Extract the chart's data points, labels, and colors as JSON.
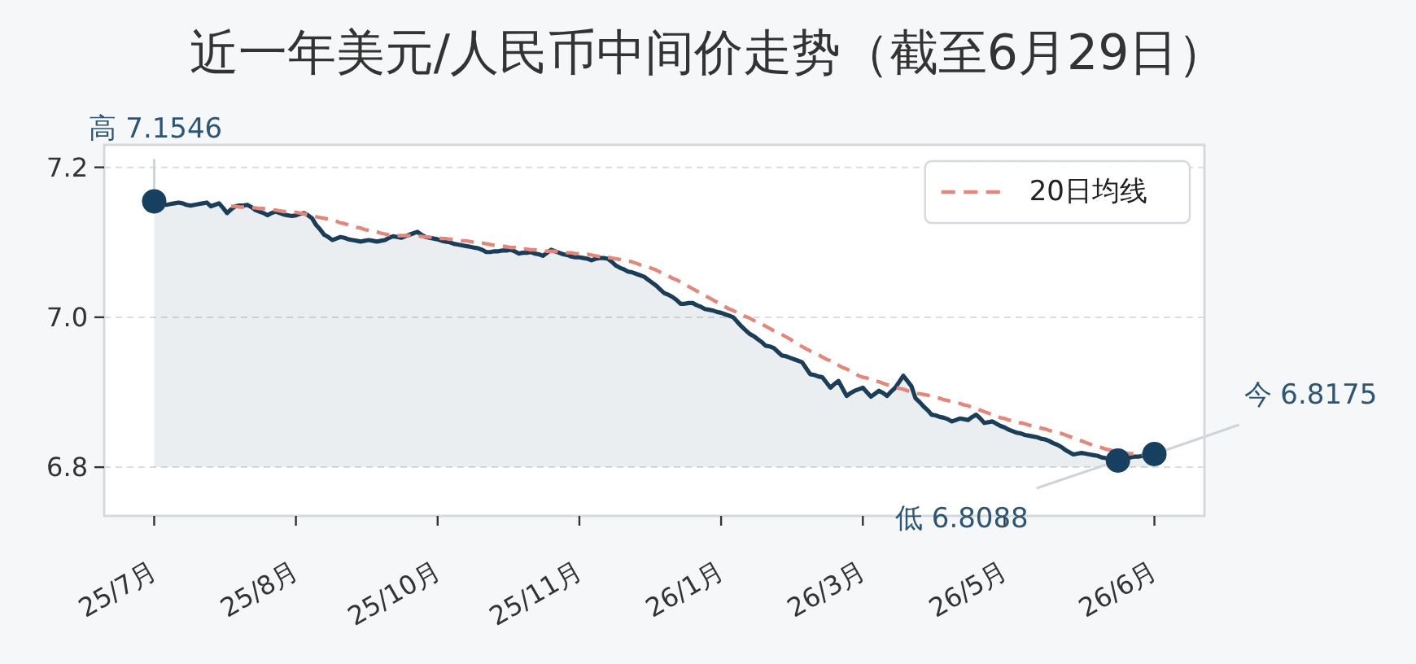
{
  "chart_data": {
    "type": "area",
    "title": "近一年美元/人民币中间价走势（截至6月29日）",
    "categories": [
      "25/7月",
      null,
      null,
      null,
      null,
      null,
      null,
      null,
      null,
      null,
      null,
      null,
      null,
      null,
      null,
      null,
      null,
      null,
      null,
      null,
      null,
      null,
      null,
      null,
      null,
      null,
      null,
      null,
      null,
      null,
      null,
      null,
      null,
      null,
      null,
      "25/8月",
      null,
      null,
      null,
      null,
      null,
      null,
      null,
      null,
      null,
      null,
      null,
      null,
      null,
      null,
      null,
      null,
      null,
      null,
      null,
      null,
      null,
      null,
      null,
      null,
      null,
      null,
      null,
      null,
      null,
      null,
      null,
      null,
      null,
      null,
      "25/10月",
      null,
      null,
      null,
      null,
      null,
      null,
      null,
      null,
      null,
      null,
      null,
      null,
      null,
      null,
      null,
      null,
      null,
      null,
      null,
      null,
      null,
      null,
      null,
      null,
      null,
      null,
      null,
      null,
      null,
      null,
      null,
      null,
      null,
      null,
      "25/11月",
      null,
      null,
      null,
      null,
      null,
      null,
      null,
      null,
      null,
      null,
      null,
      null,
      null,
      null,
      null,
      null,
      null,
      null,
      null,
      null,
      null,
      null,
      null,
      null,
      null,
      null,
      null,
      null,
      null,
      null,
      null,
      null,
      null,
      null,
      "26/1月",
      null,
      null,
      null,
      null,
      null,
      null,
      null,
      null,
      null,
      null,
      null,
      null,
      null,
      null,
      null,
      null,
      null,
      null,
      null,
      null,
      null,
      null,
      null,
      null,
      null,
      null,
      null,
      null,
      null,
      null,
      null,
      null,
      null,
      null,
      "26/3月",
      null,
      null,
      null,
      null,
      null,
      null,
      null,
      null,
      null,
      null,
      null,
      null,
      null,
      null,
      null,
      null,
      null,
      null,
      null,
      null,
      null,
      null,
      null,
      null,
      null,
      null,
      null,
      null,
      null,
      null,
      null,
      null,
      null,
      null,
      "26/5月",
      null,
      null,
      null,
      null,
      null,
      null,
      null,
      null,
      null,
      null,
      null,
      null,
      null,
      null,
      null,
      null,
      null,
      null,
      null,
      null,
      null,
      null,
      null,
      null,
      null,
      null,
      null,
      null,
      null,
      null,
      null,
      null,
      null,
      null,
      null,
      null,
      "26/6月"
    ],
    "series": [
      {
        "color": "#1b3d57",
        "values": [
          7.1546,
          7.153,
          7.151,
          7.15,
          7.151,
          7.152,
          7.153,
          7.152,
          7.15,
          7.149,
          7.15,
          7.151,
          7.152,
          7.153,
          7.148,
          7.15,
          7.152,
          7.146,
          7.139,
          7.144,
          7.148,
          7.149,
          7.149,
          7.15,
          7.147,
          7.143,
          7.141,
          7.139,
          7.136,
          7.139,
          7.141,
          7.139,
          7.137,
          7.136,
          7.135,
          7.136,
          7.138,
          7.139,
          7.136,
          7.132,
          7.123,
          7.117,
          7.11,
          7.107,
          7.103,
          7.105,
          7.107,
          7.106,
          7.104,
          7.103,
          7.102,
          7.101,
          7.102,
          7.103,
          7.102,
          7.101,
          7.102,
          7.103,
          7.106,
          7.108,
          7.107,
          7.106,
          7.108,
          7.11,
          7.112,
          7.114,
          7.11,
          7.107,
          7.106,
          7.105,
          7.104,
          7.102,
          7.101,
          7.1,
          7.098,
          7.097,
          7.096,
          7.095,
          7.094,
          7.093,
          7.092,
          7.09,
          7.087,
          7.087,
          7.088,
          7.088,
          7.089,
          7.089,
          7.09,
          7.088,
          7.085,
          7.086,
          7.086,
          7.087,
          7.085,
          7.084,
          7.082,
          7.086,
          7.09,
          7.088,
          7.086,
          7.084,
          7.083,
          7.081,
          7.08,
          7.08,
          7.079,
          7.078,
          7.076,
          7.078,
          7.079,
          7.079,
          7.078,
          7.074,
          7.069,
          7.066,
          7.064,
          7.061,
          7.06,
          7.058,
          7.056,
          7.054,
          7.05,
          7.046,
          7.042,
          7.037,
          7.032,
          7.03,
          7.027,
          7.023,
          7.018,
          7.018,
          7.019,
          7.019,
          7.016,
          7.014,
          7.011,
          7.01,
          7.009,
          7.007,
          7.006,
          7.004,
          7.002,
          7.0,
          6.994,
          6.988,
          6.983,
          6.978,
          6.975,
          6.971,
          6.967,
          6.962,
          6.961,
          6.959,
          6.954,
          6.949,
          6.948,
          6.946,
          6.944,
          6.942,
          6.94,
          6.932,
          6.924,
          6.923,
          6.921,
          6.92,
          6.913,
          6.906,
          6.911,
          6.915,
          6.905,
          6.895,
          6.899,
          6.902,
          6.904,
          6.906,
          6.9,
          6.894,
          6.898,
          6.902,
          6.899,
          6.895,
          6.901,
          6.906,
          6.914,
          6.922,
          6.915,
          6.908,
          6.892,
          6.887,
          6.881,
          6.876,
          6.87,
          6.869,
          6.867,
          6.866,
          6.864,
          6.861,
          6.863,
          6.865,
          6.864,
          6.863,
          6.867,
          6.87,
          6.865,
          6.859,
          6.86,
          6.861,
          6.858,
          6.855,
          6.853,
          6.85,
          6.848,
          6.846,
          6.845,
          6.843,
          6.842,
          6.841,
          6.84,
          6.838,
          6.837,
          6.835,
          6.832,
          6.83,
          6.827,
          6.823,
          6.82,
          6.817,
          6.818,
          6.819,
          6.818,
          6.817,
          6.816,
          6.815,
          6.813,
          6.812,
          6.811,
          6.81,
          6.8088,
          6.81,
          6.812,
          6.813,
          6.814,
          6.814,
          6.815,
          6.816,
          6.817,
          6.8175
        ]
      },
      {
        "name": "20日均线",
        "type": "line",
        "color": "#e3867c",
        "line_style": "dashed",
        "values": [
          null,
          null,
          null,
          null,
          null,
          null,
          null,
          null,
          null,
          null,
          null,
          null,
          null,
          null,
          null,
          null,
          null,
          null,
          null,
          7.148,
          7.148,
          7.147,
          7.147,
          7.147,
          7.146,
          7.146,
          7.145,
          7.145,
          7.144,
          7.143,
          7.143,
          7.142,
          7.141,
          7.141,
          7.14,
          7.14,
          7.139,
          7.138,
          7.137,
          7.136,
          7.134,
          7.133,
          7.132,
          7.131,
          7.129,
          7.128,
          7.126,
          7.125,
          7.123,
          7.122,
          7.12,
          7.119,
          7.117,
          7.116,
          7.115,
          7.114,
          7.112,
          7.111,
          7.11,
          7.11,
          7.109,
          7.109,
          7.109,
          7.109,
          7.108,
          7.108,
          7.108,
          7.107,
          7.107,
          7.106,
          7.106,
          7.105,
          7.105,
          7.104,
          7.104,
          7.103,
          7.102,
          7.102,
          7.101,
          7.1,
          7.099,
          7.099,
          7.098,
          7.097,
          7.096,
          7.095,
          7.095,
          7.094,
          7.093,
          7.093,
          7.092,
          7.091,
          7.091,
          7.09,
          7.09,
          7.089,
          7.089,
          7.088,
          7.088,
          7.088,
          7.087,
          7.087,
          7.086,
          7.086,
          7.085,
          7.085,
          7.084,
          7.084,
          7.083,
          7.082,
          7.081,
          7.081,
          7.08,
          7.079,
          7.078,
          7.077,
          7.076,
          7.075,
          7.074,
          7.072,
          7.07,
          7.069,
          7.067,
          7.065,
          7.063,
          7.06,
          7.058,
          7.055,
          7.052,
          7.05,
          7.047,
          7.044,
          7.041,
          7.038,
          7.035,
          7.032,
          7.029,
          7.026,
          7.023,
          7.02,
          7.017,
          7.014,
          7.011,
          7.009,
          7.006,
          7.004,
          7.001,
          6.999,
          6.996,
          6.993,
          6.991,
          6.988,
          6.985,
          6.982,
          6.98,
          6.977,
          6.974,
          6.971,
          6.967,
          6.964,
          6.961,
          6.958,
          6.955,
          6.953,
          6.95,
          6.947,
          6.944,
          6.942,
          6.939,
          6.936,
          6.933,
          6.931,
          6.928,
          6.925,
          6.922,
          6.92,
          6.919,
          6.917,
          6.915,
          6.914,
          6.912,
          6.91,
          6.909,
          6.907,
          6.905,
          6.904,
          6.902,
          6.901,
          6.899,
          6.898,
          6.897,
          6.896,
          6.894,
          6.893,
          6.892,
          6.89,
          6.889,
          6.887,
          6.886,
          6.885,
          6.883,
          6.882,
          6.88,
          6.878,
          6.876,
          6.874,
          6.872,
          6.87,
          6.868,
          6.866,
          6.865,
          6.863,
          6.862,
          6.86,
          6.859,
          6.858,
          6.856,
          6.855,
          6.854,
          6.852,
          6.851,
          6.849,
          6.848,
          6.846,
          6.845,
          6.843,
          6.841,
          6.839,
          6.837,
          6.835,
          6.833,
          6.831,
          6.829,
          6.827,
          6.826,
          6.824,
          6.823,
          6.822,
          6.82,
          6.819,
          6.819,
          6.818,
          6.818,
          6.817,
          6.817,
          6.816,
          6.816,
          6.815
        ]
      },
      {
        "type": "scatter",
        "color": "#163f60",
        "marker": "circle",
        "values": [
          7.1546,
          null,
          null,
          null,
          null,
          null,
          null,
          null,
          null,
          null,
          null,
          null,
          null,
          null,
          null,
          null,
          null,
          null,
          null,
          null,
          null,
          null,
          null,
          null,
          null,
          null,
          null,
          null,
          null,
          null,
          null,
          null,
          null,
          null,
          null,
          null,
          null,
          null,
          null,
          null,
          null,
          null,
          null,
          null,
          null,
          null,
          null,
          null,
          null,
          null,
          null,
          null,
          null,
          null,
          null,
          null,
          null,
          null,
          null,
          null,
          null,
          null,
          null,
          null,
          null,
          null,
          null,
          null,
          null,
          null,
          null,
          null,
          null,
          null,
          null,
          null,
          null,
          null,
          null,
          null,
          null,
          null,
          null,
          null,
          null,
          null,
          null,
          null,
          null,
          null,
          null,
          null,
          null,
          null,
          null,
          null,
          null,
          null,
          null,
          null,
          null,
          null,
          null,
          null,
          null,
          null,
          null,
          null,
          null,
          null,
          null,
          null,
          null,
          null,
          null,
          null,
          null,
          null,
          null,
          null,
          null,
          null,
          null,
          null,
          null,
          null,
          null,
          null,
          null,
          null,
          null,
          null,
          null,
          null,
          null,
          null,
          null,
          null,
          null,
          null,
          null,
          null,
          null,
          null,
          null,
          null,
          null,
          null,
          null,
          null,
          null,
          null,
          null,
          null,
          null,
          null,
          null,
          null,
          null,
          null,
          null,
          null,
          null,
          null,
          null,
          null,
          null,
          null,
          null,
          null,
          null,
          null,
          null,
          null,
          null,
          null,
          null,
          null,
          null,
          null,
          null,
          null,
          null,
          null,
          null,
          null,
          null,
          null,
          null,
          null,
          null,
          null,
          null,
          null,
          null,
          null,
          null,
          null,
          null,
          null,
          null,
          null,
          null,
          null,
          null,
          null,
          null,
          null,
          null,
          null,
          null,
          null,
          null,
          null,
          null,
          null,
          null,
          null,
          null,
          null,
          null,
          null,
          null,
          null,
          null,
          null,
          null,
          null,
          null,
          null,
          null,
          null,
          null,
          null,
          null,
          null,
          null,
          null,
          6.8088,
          null,
          null,
          null,
          null,
          null,
          null,
          null,
          null,
          6.8175
        ]
      }
    ],
    "ylim": [
      6.735,
      7.23
    ],
    "yticks": [
      6.8,
      {
        "value": 7,
        "label": "7.0"
      },
      7.2
    ],
    "grid": "y",
    "legend": "top right",
    "annotations": [
      {
        "text": "高 7.1546",
        "x": "25/7月",
        "y": 7.1546
      },
      {
        "text": "低 6.8088",
        "y": 6.8088
      },
      {
        "text": "今 6.8175",
        "x": "26/6月",
        "y": 6.8175
      }
    ]
  }
}
